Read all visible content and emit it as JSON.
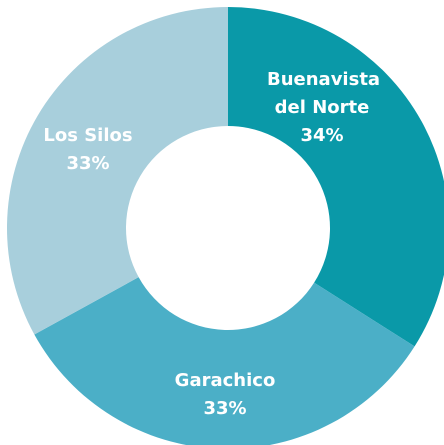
{
  "chart_data": {
    "type": "donut",
    "categories": [
      "Buenavista del Norte",
      "Garachico",
      "Los Silos"
    ],
    "values": [
      34,
      33,
      33
    ],
    "value_labels": [
      "34%",
      "33%",
      "33%"
    ],
    "colors": [
      "#0a99a8",
      "#4bafc7",
      "#a8cfdc"
    ]
  }
}
